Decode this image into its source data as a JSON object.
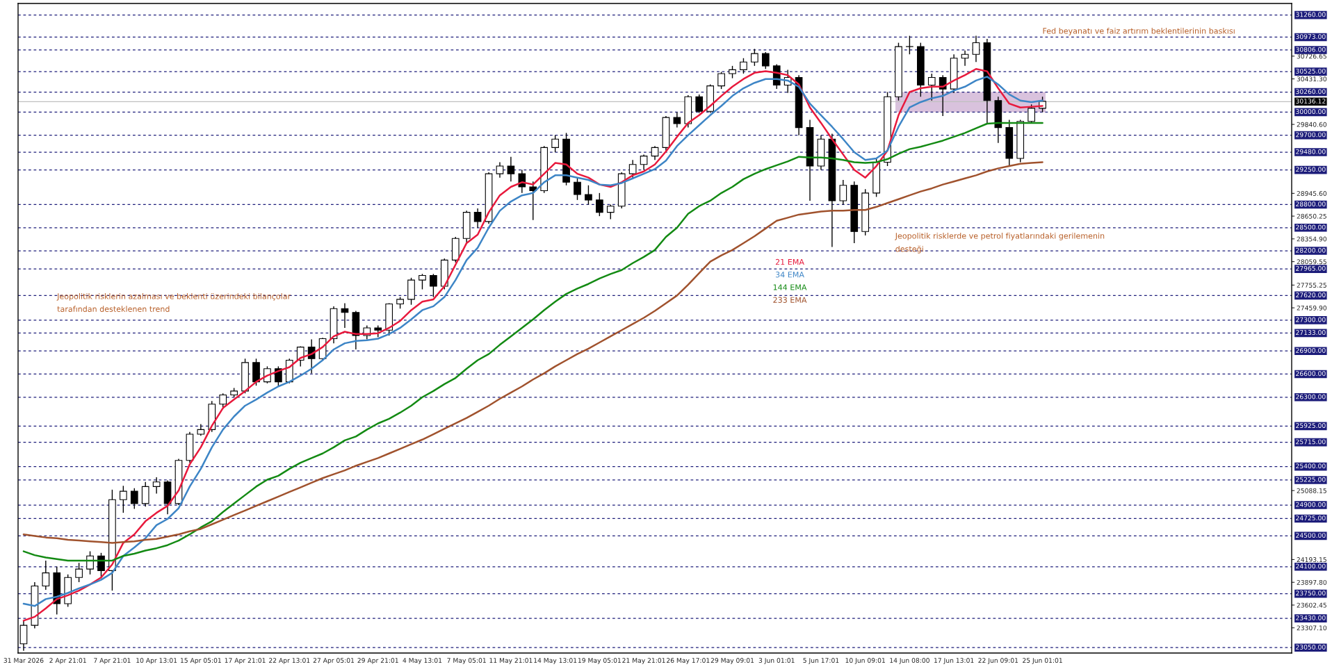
{
  "chart_data": {
    "type": "candlestick",
    "categories": [
      "31 Mar 2026",
      null,
      null,
      null,
      "2 Apr 21:01",
      null,
      null,
      null,
      "7 Apr 21:01",
      null,
      null,
      null,
      "10 Apr 13:01",
      null,
      null,
      null,
      "15 Apr 05:01",
      null,
      null,
      null,
      "17 Apr 21:01",
      null,
      null,
      null,
      "22 Apr 13:01",
      null,
      null,
      null,
      "27 Apr 05:01",
      null,
      null,
      null,
      "29 Apr 21:01",
      null,
      null,
      null,
      "4 May 13:01",
      null,
      null,
      null,
      "7 May 05:01",
      null,
      null,
      null,
      "11 May 21:01",
      null,
      null,
      null,
      "14 May 13:01",
      null,
      null,
      null,
      "19 May 05:01",
      null,
      null,
      null,
      "21 May 21:01",
      null,
      null,
      null,
      "26 May 17:01",
      null,
      null,
      null,
      "29 May 09:01",
      null,
      null,
      null,
      "3 Jun 01:01",
      null,
      null,
      null,
      "5 Jun 17:01",
      null,
      null,
      null,
      "10 Jun 09:01",
      null,
      null,
      null,
      "14 Jun 08:00",
      null,
      null,
      null,
      "17 Jun 13:01",
      null,
      null,
      null,
      "22 Jun 09:01",
      null,
      null,
      null,
      "25 Jun 01:01",
      null,
      null,
      null,
      null,
      null,
      null,
      null,
      null,
      null,
      null,
      null,
      null,
      null,
      null,
      null,
      null,
      null,
      null,
      null,
      null,
      null,
      null
    ],
    "ohlc": [
      [
        23100,
        23400,
        23010,
        23340
      ],
      [
        23340,
        23900,
        23300,
        23850
      ],
      [
        23850,
        24180,
        23800,
        24020
      ],
      [
        24020,
        24100,
        23480,
        23620
      ],
      [
        23620,
        24000,
        23580,
        23960
      ],
      [
        23960,
        24150,
        23900,
        24070
      ],
      [
        24070,
        24300,
        24000,
        24240
      ],
      [
        24240,
        24280,
        23950,
        24050
      ],
      [
        24050,
        25100,
        23790,
        24970
      ],
      [
        24970,
        25150,
        24800,
        25080
      ],
      [
        25080,
        25120,
        24850,
        24920
      ],
      [
        24920,
        25200,
        24880,
        25140
      ],
      [
        25140,
        25260,
        25050,
        25200
      ],
      [
        25200,
        25220,
        24780,
        24920
      ],
      [
        24920,
        25500,
        24900,
        25480
      ],
      [
        25480,
        25850,
        25450,
        25820
      ],
      [
        25820,
        25950,
        25800,
        25880
      ],
      [
        25880,
        26250,
        25850,
        26210
      ],
      [
        26210,
        26350,
        26150,
        26330
      ],
      [
        26330,
        26420,
        26300,
        26380
      ],
      [
        26380,
        26800,
        26350,
        26750
      ],
      [
        26750,
        26800,
        26450,
        26500
      ],
      [
        26500,
        26700,
        26480,
        26670
      ],
      [
        26670,
        26700,
        26440,
        26500
      ],
      [
        26500,
        26800,
        26480,
        26780
      ],
      [
        26780,
        26960,
        26700,
        26950
      ],
      [
        26950,
        27050,
        26610,
        26800
      ],
      [
        26800,
        27070,
        26780,
        27060
      ],
      [
        27060,
        27480,
        27000,
        27450
      ],
      [
        27450,
        27520,
        27200,
        27400
      ],
      [
        27400,
        27420,
        26920,
        27100
      ],
      [
        27100,
        27230,
        27050,
        27200
      ],
      [
        27200,
        27230,
        27080,
        27170
      ],
      [
        27170,
        27520,
        27100,
        27510
      ],
      [
        27510,
        27600,
        27450,
        27570
      ],
      [
        27570,
        27850,
        27500,
        27820
      ],
      [
        27820,
        27900,
        27700,
        27880
      ],
      [
        27880,
        27900,
        27600,
        27740
      ],
      [
        27740,
        28100,
        27700,
        28080
      ],
      [
        28080,
        28380,
        28050,
        28360
      ],
      [
        28360,
        28720,
        28300,
        28700
      ],
      [
        28700,
        28750,
        28500,
        28580
      ],
      [
        28580,
        29220,
        28550,
        29200
      ],
      [
        29200,
        29350,
        29150,
        29300
      ],
      [
        29300,
        29420,
        29100,
        29200
      ],
      [
        29200,
        29250,
        28950,
        29030
      ],
      [
        29030,
        29100,
        28600,
        28980
      ],
      [
        28980,
        29560,
        28950,
        29540
      ],
      [
        29540,
        29700,
        29480,
        29650
      ],
      [
        29650,
        29730,
        29050,
        29090
      ],
      [
        29090,
        29150,
        28860,
        28930
      ],
      [
        28930,
        29050,
        28800,
        28860
      ],
      [
        28860,
        28950,
        28650,
        28700
      ],
      [
        28700,
        28800,
        28610,
        28780
      ],
      [
        28780,
        29220,
        28750,
        29200
      ],
      [
        29200,
        29380,
        29150,
        29320
      ],
      [
        29320,
        29450,
        29250,
        29430
      ],
      [
        29430,
        29560,
        29380,
        29540
      ],
      [
        29540,
        29950,
        29500,
        29930
      ],
      [
        29930,
        30000,
        29800,
        29850
      ],
      [
        29850,
        30220,
        29800,
        30200
      ],
      [
        30200,
        30230,
        29990,
        30010
      ],
      [
        30010,
        30360,
        29990,
        30340
      ],
      [
        30340,
        30520,
        30300,
        30500
      ],
      [
        30500,
        30600,
        30440,
        30550
      ],
      [
        30550,
        30700,
        30500,
        30650
      ],
      [
        30650,
        30820,
        30600,
        30760
      ],
      [
        30760,
        30780,
        30560,
        30600
      ],
      [
        30600,
        30620,
        30300,
        30350
      ],
      [
        30350,
        30550,
        30250,
        30450
      ],
      [
        30450,
        30480,
        29700,
        29800
      ],
      [
        29800,
        29900,
        28850,
        29300
      ],
      [
        29300,
        29700,
        29250,
        29650
      ],
      [
        29650,
        29720,
        28250,
        28850
      ],
      [
        28850,
        29120,
        28800,
        29050
      ],
      [
        29050,
        29100,
        28300,
        28450
      ],
      [
        28450,
        29000,
        28400,
        28950
      ],
      [
        28950,
        29400,
        28900,
        29350
      ],
      [
        29350,
        30260,
        29300,
        30200
      ],
      [
        30200,
        30900,
        30150,
        30850
      ],
      [
        30850,
        30990,
        30750,
        30850
      ],
      [
        30850,
        30900,
        30200,
        30350
      ],
      [
        30350,
        30500,
        30150,
        30450
      ],
      [
        30450,
        30480,
        29950,
        30300
      ],
      [
        30300,
        30750,
        30250,
        30700
      ],
      [
        30700,
        30800,
        30600,
        30750
      ],
      [
        30750,
        30990,
        30650,
        30900
      ],
      [
        30900,
        30950,
        29850,
        30150
      ],
      [
        30150,
        30200,
        29600,
        29800
      ],
      [
        29800,
        29900,
        29300,
        29400
      ],
      [
        29400,
        29900,
        29350,
        29880
      ],
      [
        29880,
        30100,
        29850,
        30050
      ],
      [
        30050,
        30200,
        30000,
        30140
      ],
      null,
      null,
      null,
      null,
      null,
      null,
      null,
      null,
      null,
      null,
      null,
      null,
      null,
      null,
      null,
      null,
      null,
      null,
      null,
      null,
      null,
      null
    ],
    "series": [
      {
        "name": "21 EMA",
        "type": "line",
        "color": "#e8193c",
        "values": [
          23400,
          23450,
          23560,
          23680,
          23730,
          23790,
          23870,
          23960,
          24130,
          24410,
          24520,
          24690,
          24800,
          24890,
          25090,
          25430,
          25650,
          25930,
          26160,
          26270,
          26380,
          26500,
          26580,
          26640,
          26690,
          26810,
          26860,
          26950,
          27090,
          27150,
          27120,
          27120,
          27130,
          27200,
          27290,
          27430,
          27540,
          27570,
          27740,
          28020,
          28300,
          28410,
          28700,
          28920,
          29030,
          29090,
          29060,
          29200,
          29340,
          29320,
          29200,
          29150,
          29060,
          29030,
          29090,
          29180,
          29230,
          29320,
          29490,
          29680,
          29860,
          29960,
          30080,
          30210,
          30330,
          30430,
          30510,
          30530,
          30510,
          30480,
          30360,
          30060,
          29860,
          29650,
          29450,
          29250,
          29150,
          29300,
          29500,
          29960,
          30260,
          30310,
          30330,
          30330,
          30410,
          30480,
          30560,
          30530,
          30310,
          30110,
          30060,
          30070,
          30080,
          null,
          null,
          null,
          null,
          null,
          null,
          null,
          null,
          null,
          null,
          null,
          null,
          null,
          null,
          null,
          null,
          null,
          null,
          null,
          null,
          null,
          null
        ]
      },
      {
        "name": "34 EMA",
        "type": "line",
        "color": "#3d85c6",
        "values": [
          23620,
          23590,
          23680,
          23710,
          23760,
          23820,
          23870,
          23930,
          24020,
          24240,
          24350,
          24470,
          24640,
          24720,
          24860,
          25140,
          25370,
          25650,
          25880,
          26050,
          26190,
          26270,
          26360,
          26440,
          26500,
          26580,
          26670,
          26780,
          26920,
          27000,
          27030,
          27040,
          27060,
          27120,
          27200,
          27310,
          27430,
          27480,
          27600,
          27820,
          28080,
          28240,
          28500,
          28720,
          28840,
          28920,
          28950,
          29090,
          29180,
          29180,
          29150,
          29120,
          29060,
          29050,
          29080,
          29140,
          29200,
          29260,
          29370,
          29560,
          29700,
          29830,
          29960,
          30080,
          30210,
          30310,
          30380,
          30430,
          30430,
          30410,
          30330,
          30110,
          29960,
          29810,
          29650,
          29480,
          29380,
          29400,
          29500,
          29810,
          30060,
          30130,
          30180,
          30210,
          30280,
          30330,
          30410,
          30460,
          30360,
          30230,
          30150,
          30130,
          30150,
          null,
          null,
          null,
          null,
          null,
          null,
          null,
          null,
          null,
          null,
          null,
          null,
          null,
          null,
          null,
          null,
          null,
          null,
          null,
          null,
          null,
          null
        ]
      },
      {
        "name": "144 EMA",
        "type": "line",
        "color": "#138a13",
        "values": [
          24300,
          24250,
          24220,
          24200,
          24180,
          24180,
          24180,
          24180,
          24180,
          24240,
          24270,
          24310,
          24340,
          24380,
          24440,
          24520,
          24610,
          24690,
          24810,
          24920,
          25030,
          25140,
          25230,
          25280,
          25370,
          25450,
          25510,
          25570,
          25650,
          25740,
          25790,
          25880,
          25960,
          26020,
          26100,
          26190,
          26300,
          26380,
          26470,
          26550,
          26670,
          26780,
          26860,
          26980,
          27090,
          27200,
          27310,
          27430,
          27540,
          27640,
          27710,
          27770,
          27840,
          27900,
          27950,
          28040,
          28120,
          28210,
          28380,
          28500,
          28680,
          28780,
          28850,
          28950,
          29030,
          29130,
          29200,
          29260,
          29310,
          29360,
          29420,
          29410,
          29410,
          29400,
          29380,
          29350,
          29340,
          29350,
          29390,
          29460,
          29520,
          29550,
          29590,
          29630,
          29680,
          29730,
          29790,
          29850,
          29860,
          29860,
          29860,
          29860,
          29860,
          null,
          null,
          null,
          null,
          null,
          null,
          null,
          null,
          null,
          null,
          null,
          null,
          null,
          null,
          null,
          null,
          null,
          null,
          null,
          null,
          null,
          null
        ]
      },
      {
        "name": "233 EMA",
        "type": "line",
        "color": "#a0522d",
        "values": [
          24520,
          24500,
          24480,
          24470,
          24450,
          24440,
          24430,
          24420,
          24410,
          24420,
          24430,
          24450,
          24460,
          24490,
          24520,
          24560,
          24590,
          24650,
          24710,
          24770,
          24830,
          24890,
          24950,
          25010,
          25070,
          25130,
          25190,
          25250,
          25300,
          25350,
          25410,
          25460,
          25510,
          25570,
          25630,
          25690,
          25750,
          25820,
          25890,
          25960,
          26030,
          26110,
          26190,
          26280,
          26360,
          26440,
          26530,
          26610,
          26700,
          26780,
          26860,
          26930,
          27010,
          27090,
          27170,
          27250,
          27330,
          27420,
          27520,
          27620,
          27760,
          27910,
          28060,
          28140,
          28210,
          28300,
          28390,
          28490,
          28590,
          28630,
          28670,
          28690,
          28710,
          28720,
          28720,
          28730,
          28730,
          28770,
          28820,
          28870,
          28920,
          28970,
          29010,
          29060,
          29100,
          29140,
          29180,
          29230,
          29270,
          29300,
          29330,
          29340,
          29350,
          null,
          null,
          null,
          null,
          null,
          null,
          null,
          null,
          null,
          null,
          null,
          null,
          null,
          null,
          null,
          null,
          null,
          null,
          null,
          null,
          null,
          null
        ]
      }
    ],
    "ylim": [
      22980,
      31410
    ],
    "yticks": [
      {
        "value": 30726.65,
        "label": "30726.65"
      },
      {
        "value": 30431.3,
        "label": "30431.30"
      },
      {
        "value": 29840.6,
        "label": "29840.60"
      },
      {
        "value": 28945.6,
        "label": "28945.60"
      },
      {
        "value": 28650.25,
        "label": "28650.25"
      },
      {
        "value": 28354.9,
        "label": "28354.90"
      },
      {
        "value": 28059.55,
        "label": "28059.55"
      },
      {
        "value": 27755.25,
        "label": "27755.25"
      },
      {
        "value": 27459.9,
        "label": "27459.90"
      },
      {
        "value": 25088.15,
        "label": "25088.15"
      },
      {
        "value": 24193.15,
        "label": "24193.15"
      },
      {
        "value": 23897.8,
        "label": "23897.80"
      },
      {
        "value": 23602.45,
        "label": "23602.45"
      },
      {
        "value": 23307.1,
        "label": "23307.10"
      }
    ],
    "ref_lines": [
      {
        "axis": "y",
        "value": 31260,
        "label": "31260.00",
        "color": "#1c1c7a",
        "line_style": "dashed"
      },
      {
        "axis": "y",
        "value": 30973,
        "label": "30973.00",
        "color": "#1c1c7a",
        "line_style": "dashed"
      },
      {
        "axis": "y",
        "value": 30806,
        "label": "30806.00",
        "color": "#1c1c7a",
        "line_style": "dashed"
      },
      {
        "axis": "y",
        "value": 30525,
        "label": "30525.00",
        "color": "#1c1c7a",
        "line_style": "dashed"
      },
      {
        "axis": "y",
        "value": 30260,
        "label": "30260.00",
        "color": "#1c1c7a",
        "line_style": "dashed"
      },
      {
        "axis": "y",
        "value": 30136.12,
        "label": "30136.12",
        "color": "#c0c0c0",
        "line_style": "solid"
      },
      {
        "axis": "y",
        "value": 30000,
        "label": "30000.00",
        "color": "#1c1c7a",
        "line_style": "dashed"
      },
      {
        "axis": "y",
        "value": 29700,
        "label": "29700.00",
        "color": "#1c1c7a",
        "line_style": "dashed"
      },
      {
        "axis": "y",
        "value": 29480,
        "label": "29480.00",
        "color": "#1c1c7a",
        "line_style": "dashed"
      },
      {
        "axis": "y",
        "value": 29250,
        "label": "29250.00",
        "color": "#1c1c7a",
        "line_style": "dashed"
      },
      {
        "axis": "y",
        "value": 28800,
        "label": "28800.00",
        "color": "#1c1c7a",
        "line_style": "dashed"
      },
      {
        "axis": "y",
        "value": 28500,
        "label": "28500.00",
        "color": "#1c1c7a",
        "line_style": "dashed"
      },
      {
        "axis": "y",
        "value": 28200,
        "label": "28200.00",
        "color": "#1c1c7a",
        "line_style": "dashed"
      },
      {
        "axis": "y",
        "value": 27965,
        "label": "27965.00",
        "color": "#1c1c7a",
        "line_style": "dashed"
      },
      {
        "axis": "y",
        "value": 27620,
        "label": "27620.00",
        "color": "#1c1c7a",
        "line_style": "dashed"
      },
      {
        "axis": "y",
        "value": 27300,
        "label": "27300.00",
        "color": "#1c1c7a",
        "line_style": "dashed"
      },
      {
        "axis": "y",
        "value": 27133,
        "label": "27133.00",
        "color": "#1c1c7a",
        "line_style": "dashed"
      },
      {
        "axis": "y",
        "value": 26900,
        "label": "26900.00",
        "color": "#1c1c7a",
        "line_style": "dashed"
      },
      {
        "axis": "y",
        "value": 26600,
        "label": "26600.00",
        "color": "#1c1c7a",
        "line_style": "dashed"
      },
      {
        "axis": "y",
        "value": 26300,
        "label": "26300.00",
        "color": "#1c1c7a",
        "line_style": "dashed"
      },
      {
        "axis": "y",
        "value": 25925,
        "label": "25925.00",
        "color": "#1c1c7a",
        "line_style": "dashed"
      },
      {
        "axis": "y",
        "value": 25715,
        "label": "25715.00",
        "color": "#1c1c7a",
        "line_style": "dashed"
      },
      {
        "axis": "y",
        "value": 25400,
        "label": "25400.00",
        "color": "#1c1c7a",
        "line_style": "dashed"
      },
      {
        "axis": "y",
        "value": 25225,
        "label": "25225.00",
        "color": "#1c1c7a",
        "line_style": "dashed"
      },
      {
        "axis": "y",
        "value": 24900,
        "label": "24900.00",
        "color": "#1c1c7a",
        "line_style": "dashed"
      },
      {
        "axis": "y",
        "value": 24725,
        "label": "24725.00",
        "color": "#1c1c7a",
        "line_style": "dashed"
      },
      {
        "axis": "y",
        "value": 24500,
        "label": "24500.00",
        "color": "#1c1c7a",
        "line_style": "dashed"
      },
      {
        "axis": "y",
        "value": 24100,
        "label": "24100.00",
        "color": "#1c1c7a",
        "line_style": "dashed"
      },
      {
        "axis": "y",
        "value": 23750,
        "label": "23750.00",
        "color": "#1c1c7a",
        "line_style": "dashed"
      },
      {
        "axis": "y",
        "value": 23430,
        "label": "23430.00",
        "color": "#1c1c7a",
        "line_style": "dashed"
      },
      {
        "axis": "y",
        "value": 23050,
        "label": "23050.00",
        "color": "#1c1c7a",
        "line_style": "dashed"
      }
    ],
    "bands": [
      {
        "axis": "y",
        "from": 30000,
        "to": 30260,
        "color": "#d9c2dd"
      }
    ],
    "annotations": [
      "Fed beyanatı ve faiz artırım beklentilerinin baskısı",
      "Jeopolitik risklerde ve petrol fiyatlarındaki gerilemenin\ndesteği",
      "Jeopolitik risklerin azalması ve beklenti üzerindeki bilançolar\ntarafından desteklenen trend"
    ],
    "legend": "center"
  }
}
